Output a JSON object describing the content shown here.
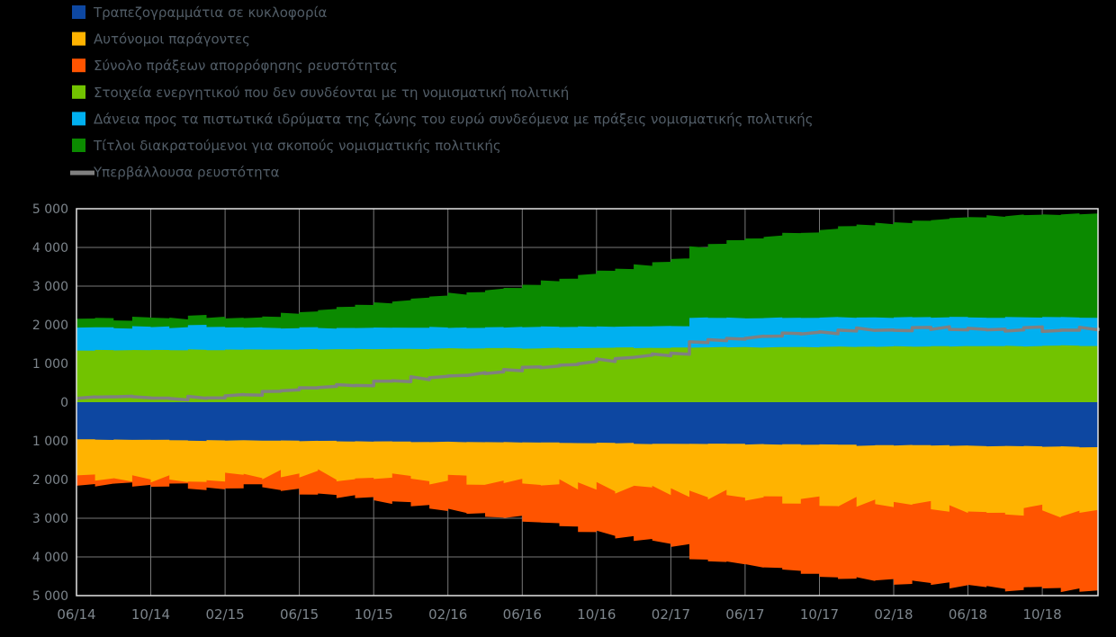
{
  "chart_data": {
    "type": "area",
    "title": "",
    "background": "#000000",
    "colors": {
      "grid": "#787878",
      "frame": "#e2e2e2",
      "axis_text": "#7d858c",
      "legend_text": "#515c66"
    },
    "x": {
      "n_points": 56,
      "tick_indices": [
        0,
        4,
        8,
        12,
        16,
        20,
        24,
        28,
        32,
        36,
        40,
        44,
        48,
        52
      ],
      "tick_labels": [
        "06/14",
        "10/14",
        "02/15",
        "06/15",
        "10/15",
        "02/16",
        "06/16",
        "10/16",
        "02/17",
        "06/17",
        "10/17",
        "02/18",
        "06/18",
        "10/18"
      ]
    },
    "y": {
      "min": -5000,
      "max": 5000,
      "tick_step": 1000,
      "tick_labels": [
        "5 000",
        "4 000",
        "3 000",
        "2 000",
        "1 000",
        "0",
        "1 000",
        "2 000",
        "3 000",
        "4 000",
        "5 000"
      ]
    },
    "stack_positive": [
      "non_mp_assets",
      "lending",
      "mp_securities"
    ],
    "stack_negative": [
      "banknotes",
      "autonomous_factors",
      "liquidity_absorption"
    ],
    "line_key": "excess_liquidity",
    "legend_order": [
      "banknotes",
      "autonomous_factors",
      "liquidity_absorption",
      "non_mp_assets",
      "lending",
      "mp_securities",
      "excess_liquidity"
    ],
    "series": {
      "banknotes": {
        "label": "Τραπεζογραμμάτια σε κυκλοφορία",
        "color": "#0d47a1",
        "render": "area",
        "stack": "negative",
        "values": [
          965,
          968,
          970,
          972,
          975,
          980,
          995,
          985,
          987,
          990,
          994,
          998,
          1002,
          1006,
          1008,
          1011,
          1014,
          1018,
          1035,
          1025,
          1028,
          1032,
          1036,
          1040,
          1044,
          1048,
          1050,
          1053,
          1056,
          1060,
          1078,
          1068,
          1071,
          1074,
          1078,
          1082,
          1086,
          1090,
          1092,
          1095,
          1098,
          1102,
          1120,
          1110,
          1113,
          1116,
          1120,
          1124,
          1128,
          1132,
          1136,
          1140,
          1144,
          1148,
          1163,
          1152
        ]
      },
      "autonomous_factors": {
        "label": "Αυτόνομοι παράγοντες",
        "color": "#ffb300",
        "render": "area",
        "stack": "negative",
        "values": [
          955,
          950,
          934,
          997,
          987,
          971,
          1000,
          940,
          921,
          885,
          861,
          873,
          888,
          874,
          892,
          920,
          923,
          942,
          919,
          957,
          958,
          981,
          990,
          994,
          1026,
          1045,
          1072,
          1104,
          1135,
          1158,
          1154,
          1205,
          1251,
          1257,
          1299,
          1333,
          1336,
          1355,
          1386,
          1408,
          1442,
          1468,
          1468,
          1502,
          1560,
          1552,
          1562,
          1629,
          1626,
          1637,
          1679,
          1657,
          1700,
          1685,
          1658,
          1702
        ]
      },
      "liquidity_absorption": {
        "label": "Σύνολο πράξεων απορρόφησης ρευστότητας",
        "color": "#ff5400",
        "render": "area",
        "stack": "negative",
        "values": [
          245,
          235,
          225,
          215,
          210,
          205,
          235,
          265,
          275,
          315,
          375,
          415,
          465,
          515,
          555,
          585,
          635,
          665,
          735,
          765,
          815,
          845,
          895,
          945,
          985,
          1045,
          1095,
          1145,
          1195,
          1245,
          1320,
          1360,
          1390,
          1672,
          1712,
          1752,
          1802,
          1842,
          1872,
          1902,
          1932,
          1962,
          2002,
          2013,
          1983,
          2014,
          2035,
          1996,
          2017,
          2038,
          2009,
          2029,
          2000,
          2020,
          2030,
          2000
        ]
      },
      "non_mp_assets": {
        "label": "Στοιχεία ενεργητικού που δεν συνδέονται με τη νομισματική πολιτική",
        "color": "#72c300",
        "render": "area",
        "stack": "positive",
        "values": [
          1340,
          1345,
          1338,
          1350,
          1355,
          1348,
          1360,
          1352,
          1358,
          1365,
          1360,
          1368,
          1372,
          1365,
          1375,
          1370,
          1378,
          1382,
          1375,
          1385,
          1390,
          1383,
          1392,
          1396,
          1390,
          1398,
          1402,
          1395,
          1405,
          1408,
          1402,
          1410,
          1415,
          1408,
          1418,
          1420,
          1415,
          1422,
          1428,
          1420,
          1430,
          1433,
          1428,
          1436,
          1440,
          1434,
          1442,
          1446,
          1440,
          1448,
          1452,
          1446,
          1455,
          1460,
          1455,
          1458
        ]
      },
      "lending": {
        "label": "Δάνεια προς τα πιστωτικά ιδρύματα της ζώνης του ευρώ συνδεόμενα με πράξεις νομισματικής πολιτικής",
        "color": "#00b0f0",
        "render": "area",
        "stack": "positive",
        "values": [
          600,
          585,
          570,
          615,
          595,
          580,
          635,
          600,
          580,
          565,
          555,
          548,
          558,
          550,
          545,
          556,
          549,
          543,
          554,
          547,
          541,
          550,
          544,
          538,
          560,
          555,
          550,
          562,
          556,
          550,
          565,
          558,
          552,
          770,
          766,
          762,
          764,
          760,
          757,
          760,
          757,
          754,
          757,
          754,
          751,
          753,
          750,
          748,
          746,
          744,
          742,
          740,
          739,
          738,
          736,
          734
        ]
      },
      "mp_securities": {
        "label": "Τίτλοι διακρατούμενοι για σκοπούς νομισματικής πολιτικής",
        "color": "#0b8a00",
        "render": "area",
        "stack": "positive",
        "values": [
          225,
          223,
          221,
          219,
          222,
          228,
          235,
          238,
          245,
          260,
          315,
          370,
          425,
          480,
          535,
          590,
          645,
          700,
          760,
          815,
          870,
          925,
          985,
          1045,
          1105,
          1185,
          1265,
          1345,
          1425,
          1505,
          1585,
          1665,
          1745,
          1825,
          1905,
          1985,
          2045,
          2105,
          2165,
          2225,
          2285,
          2345,
          2405,
          2435,
          2465,
          2495,
          2525,
          2555,
          2585,
          2615,
          2630,
          2640,
          2650,
          2655,
          2660,
          2662
        ]
      },
      "excess_liquidity": {
        "label": "Υπερβάλλουσα ρευστότητα",
        "color": "#808080",
        "render": "line",
        "values": [
          130,
          120,
          110,
          100,
          95,
          90,
          120,
          150,
          160,
          200,
          260,
          300,
          350,
          400,
          440,
          470,
          520,
          550,
          620,
          650,
          700,
          730,
          780,
          830,
          870,
          930,
          980,
          1030,
          1080,
          1130,
          1200,
          1240,
          1270,
          1550,
          1590,
          1630,
          1680,
          1720,
          1750,
          1780,
          1810,
          1840,
          1880,
          1890,
          1860,
          1890,
          1910,
          1870,
          1890,
          1910,
          1880,
          1900,
          1870,
          1890,
          1900,
          1870
        ]
      }
    }
  }
}
